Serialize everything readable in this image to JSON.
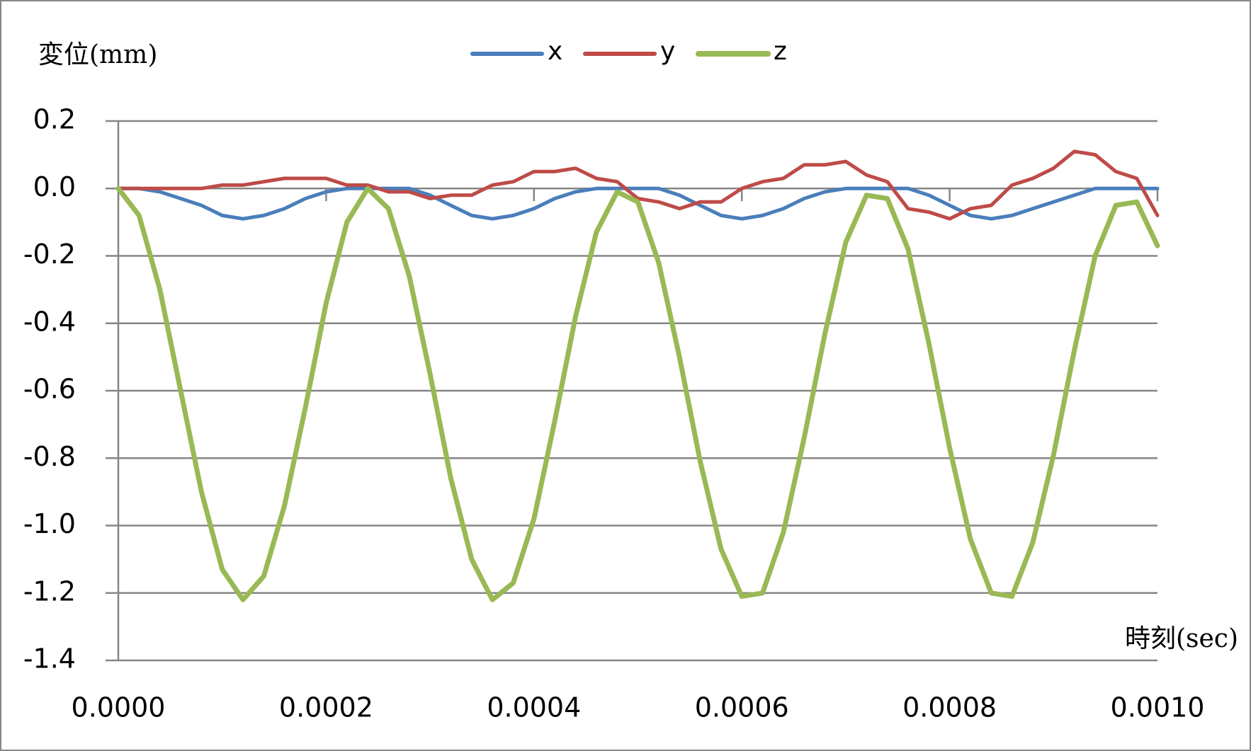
{
  "chart_data": {
    "type": "line",
    "y_label": "変位(mm)",
    "x_label": "時刻(sec)",
    "legend": "top",
    "grid": true,
    "xlim": [
      0,
      0.001
    ],
    "ylim": [
      -1.4,
      0.2
    ],
    "xticks": [
      {
        "value": 0,
        "label": "0.0000"
      },
      {
        "value": 0.0002,
        "label": "0.0002"
      },
      {
        "value": 0.0004,
        "label": "0.0004"
      },
      {
        "value": 0.0006,
        "label": "0.0006"
      },
      {
        "value": 0.0008,
        "label": "0.0008"
      },
      {
        "value": 0.001,
        "label": "0.0010"
      }
    ],
    "yticks": [
      {
        "value": 0.2,
        "label": "0.2"
      },
      {
        "value": 0,
        "label": "0.0"
      },
      {
        "value": -0.2,
        "label": "-0.2"
      },
      {
        "value": -0.4,
        "label": "-0.4"
      },
      {
        "value": -0.6,
        "label": "-0.6"
      },
      {
        "value": -0.8,
        "label": "-0.8"
      },
      {
        "value": -1,
        "label": "-1.0"
      },
      {
        "value": -1.2,
        "label": "-1.2"
      },
      {
        "value": -1.4,
        "label": "-1.4"
      }
    ],
    "x": [
      0,
      2e-05,
      4e-05,
      6e-05,
      8e-05,
      0.0001,
      0.00012,
      0.00014,
      0.00016,
      0.00018,
      0.0002,
      0.00022,
      0.00024,
      0.00026,
      0.00028,
      0.0003,
      0.00032,
      0.00034,
      0.00036,
      0.00038,
      0.0004,
      0.00042,
      0.00044,
      0.00046,
      0.00048,
      0.0005,
      0.00052,
      0.00054,
      0.00056,
      0.00058,
      0.0006,
      0.00062,
      0.00064,
      0.00066,
      0.00068,
      0.0007,
      0.00072,
      0.00074,
      0.00076,
      0.00078,
      0.0008,
      0.00082,
      0.00084,
      0.00086,
      0.00088,
      0.0009,
      0.00092,
      0.00094,
      0.00096,
      0.00098,
      0.001
    ],
    "series": [
      {
        "name": "x",
        "color": "#4a7ebb",
        "width": 5,
        "values": [
          0,
          0,
          -0.01,
          -0.03,
          -0.05,
          -0.08,
          -0.09,
          -0.08,
          -0.06,
          -0.03,
          -0.01,
          0,
          0,
          0,
          0,
          -0.02,
          -0.05,
          -0.08,
          -0.09,
          -0.08,
          -0.06,
          -0.03,
          -0.01,
          0,
          0,
          0,
          0,
          -0.02,
          -0.05,
          -0.08,
          -0.09,
          -0.08,
          -0.06,
          -0.03,
          -0.01,
          0,
          0,
          0,
          0,
          -0.02,
          -0.05,
          -0.08,
          -0.09,
          -0.08,
          -0.06,
          -0.04,
          -0.02,
          0,
          0,
          0,
          0
        ]
      },
      {
        "name": "y",
        "color": "#be4b48",
        "width": 5,
        "values": [
          0,
          0,
          0,
          0,
          0,
          0.01,
          0.01,
          0.02,
          0.03,
          0.03,
          0.03,
          0.01,
          0.01,
          -0.01,
          -0.01,
          -0.03,
          -0.02,
          -0.02,
          0.01,
          0.02,
          0.05,
          0.05,
          0.06,
          0.03,
          0.02,
          -0.03,
          -0.04,
          -0.06,
          -0.04,
          -0.04,
          0,
          0.02,
          0.03,
          0.07,
          0.07,
          0.08,
          0.04,
          0.02,
          -0.06,
          -0.07,
          -0.09,
          -0.06,
          -0.05,
          0.01,
          0.03,
          0.06,
          0.11,
          0.1,
          0.05,
          0.03,
          -0.08
        ]
      },
      {
        "name": "z",
        "color": "#98b954",
        "width": 7,
        "values": [
          0,
          -0.08,
          -0.3,
          -0.6,
          -0.9,
          -1.13,
          -1.22,
          -1.15,
          -0.94,
          -0.65,
          -0.34,
          -0.1,
          0,
          -0.06,
          -0.26,
          -0.55,
          -0.86,
          -1.1,
          -1.22,
          -1.17,
          -0.98,
          -0.69,
          -0.38,
          -0.13,
          -0.01,
          -0.04,
          -0.22,
          -0.5,
          -0.81,
          -1.07,
          -1.21,
          -1.2,
          -1.02,
          -0.74,
          -0.43,
          -0.16,
          -0.02,
          -0.03,
          -0.18,
          -0.46,
          -0.77,
          -1.04,
          -1.2,
          -1.21,
          -1.05,
          -0.79,
          -0.48,
          -0.2,
          -0.05,
          -0.04,
          -0.17
        ]
      }
    ]
  }
}
